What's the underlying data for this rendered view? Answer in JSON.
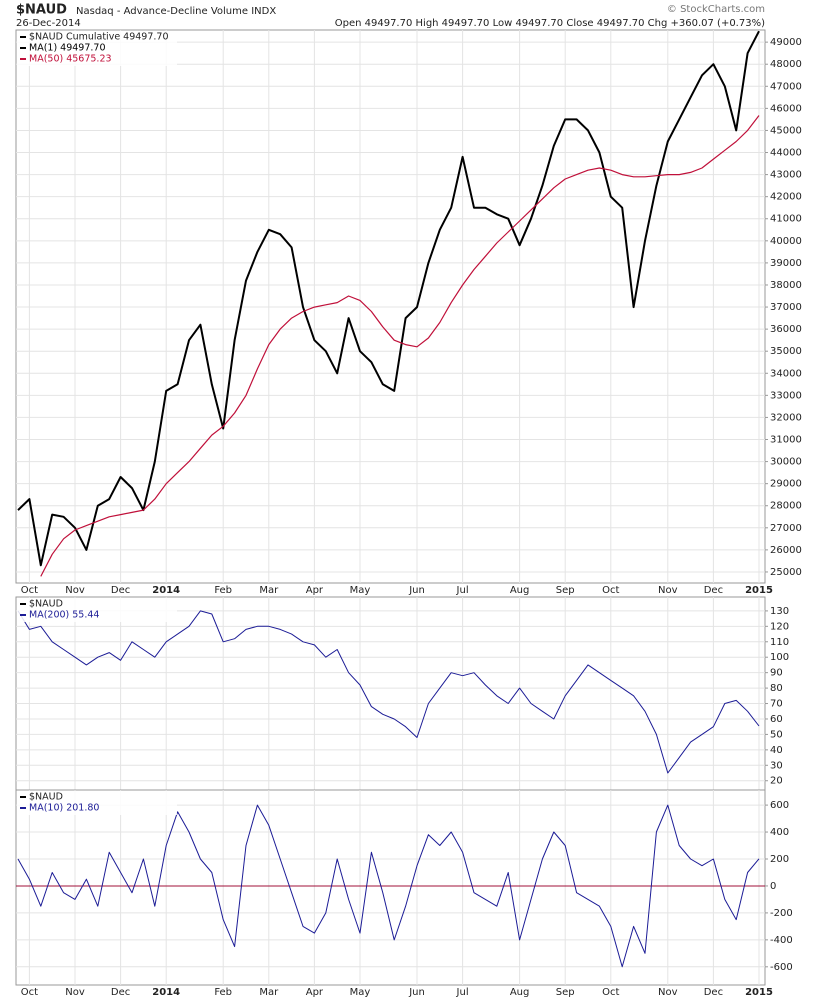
{
  "header": {
    "symbol": "$NAUD",
    "name": "Nasdaq - Advance-Decline Volume INDX",
    "date": "26-Dec-2014",
    "quote": "Open 49497.70  High 49497.70  Low 49497.70  Close 49497.70  Chg +360.07 (+0.73%)",
    "credit": "© StockCharts.com"
  },
  "chart_data": [
    {
      "type": "line",
      "legend_title": "$NAUD Cumulative 49497.70",
      "categories": [
        null,
        "Oct",
        null,
        null,
        null,
        "Nov",
        null,
        null,
        null,
        "Dec",
        null,
        null,
        null,
        "2014",
        null,
        null,
        null,
        null,
        "Feb",
        null,
        null,
        null,
        "Mar",
        null,
        null,
        null,
        "Apr",
        null,
        null,
        null,
        "May",
        null,
        null,
        null,
        null,
        "Jun",
        null,
        null,
        null,
        "Jul",
        null,
        null,
        null,
        null,
        "Aug",
        null,
        null,
        null,
        "Sep",
        null,
        null,
        null,
        "Oct",
        null,
        null,
        null,
        null,
        "Nov",
        null,
        null,
        null,
        "Dec",
        null,
        null,
        null,
        "2015"
      ],
      "series": [
        {
          "name": "MA(1) 49497.70",
          "color": "#000000",
          "width": 2,
          "values": [
            27800,
            28300,
            25300,
            27600,
            27500,
            27000,
            26000,
            28000,
            28300,
            29300,
            28800,
            27800,
            30000,
            33200,
            33500,
            35500,
            36200,
            33500,
            31500,
            35500,
            38200,
            39500,
            40500,
            40300,
            39700,
            37000,
            35500,
            35000,
            34000,
            36500,
            35000,
            34500,
            33500,
            33200,
            36500,
            37000,
            39000,
            40500,
            41500,
            43800,
            41500,
            41500,
            41200,
            41000,
            39800,
            41000,
            42500,
            44300,
            45500,
            45500,
            45000,
            44000,
            42000,
            41500,
            37000,
            40000,
            42500,
            44500,
            45500,
            46500,
            47500,
            48000,
            47000,
            45000,
            48500,
            49497.7
          ]
        },
        {
          "name": "MA(50) 45675.23",
          "color": "#c0103a",
          "width": 1.2,
          "values": [
            null,
            null,
            24800,
            25800,
            26500,
            26900,
            27100,
            27300,
            27500,
            27600,
            27700,
            27800,
            28300,
            29000,
            29500,
            30000,
            30600,
            31200,
            31600,
            32200,
            33000,
            34200,
            35300,
            36000,
            36500,
            36800,
            37000,
            37100,
            37200,
            37500,
            37300,
            36800,
            36100,
            35500,
            35300,
            35200,
            35600,
            36300,
            37200,
            38000,
            38700,
            39300,
            39900,
            40400,
            40900,
            41400,
            41900,
            42400,
            42800,
            43000,
            43200,
            43300,
            43200,
            43000,
            42900,
            42900,
            42950,
            43000,
            43000,
            43100,
            43300,
            43700,
            44100,
            44500,
            45000,
            45675.23
          ]
        }
      ],
      "ylim": [
        24500,
        49550
      ],
      "yticks": [
        25000,
        26000,
        27000,
        28000,
        29000,
        30000,
        31000,
        32000,
        33000,
        34000,
        35000,
        36000,
        37000,
        38000,
        39000,
        40000,
        41000,
        42000,
        43000,
        44000,
        45000,
        46000,
        47000,
        48000,
        49000
      ],
      "grid": true
    },
    {
      "type": "line",
      "legend_title": "$NAUD",
      "series": [
        {
          "name": "MA(200) 55.44",
          "color": "#1c1c96",
          "width": 1,
          "values": [
            130,
            118,
            120,
            110,
            105,
            100,
            95,
            100,
            103,
            98,
            110,
            105,
            100,
            110,
            115,
            120,
            130,
            128,
            110,
            112,
            118,
            120,
            120,
            118,
            115,
            110,
            108,
            100,
            105,
            90,
            82,
            68,
            63,
            60,
            55,
            48,
            70,
            80,
            90,
            88,
            90,
            82,
            75,
            70,
            80,
            70,
            65,
            60,
            75,
            85,
            95,
            90,
            85,
            80,
            75,
            65,
            50,
            25,
            35,
            45,
            50,
            55,
            70,
            72,
            65,
            55.44
          ]
        }
      ],
      "ylim": [
        14,
        139
      ],
      "yticks": [
        20,
        30,
        40,
        50,
        60,
        70,
        80,
        90,
        100,
        110,
        120,
        130
      ],
      "grid": true
    },
    {
      "type": "line",
      "legend_title": "$NAUD",
      "categories": [
        null,
        "Oct",
        null,
        null,
        null,
        "Nov",
        null,
        null,
        null,
        "Dec",
        null,
        null,
        null,
        "2014",
        null,
        null,
        null,
        null,
        "Feb",
        null,
        null,
        null,
        "Mar",
        null,
        null,
        null,
        "Apr",
        null,
        null,
        null,
        "May",
        null,
        null,
        null,
        null,
        "Jun",
        null,
        null,
        null,
        "Jul",
        null,
        null,
        null,
        null,
        "Aug",
        null,
        null,
        null,
        "Sep",
        null,
        null,
        null,
        "Oct",
        null,
        null,
        null,
        null,
        "Nov",
        null,
        null,
        null,
        "Dec",
        null,
        null,
        null,
        "2015"
      ],
      "series": [
        {
          "name": "MA(10) 201.80",
          "color": "#1c1c96",
          "width": 1,
          "values": [
            200,
            50,
            -150,
            100,
            -50,
            -100,
            50,
            -150,
            250,
            100,
            -50,
            200,
            -150,
            300,
            550,
            400,
            200,
            100,
            -250,
            -450,
            300,
            600,
            450,
            200,
            -50,
            -300,
            -350,
            -200,
            200,
            -100,
            -350,
            250,
            -50,
            -400,
            -150,
            150,
            380,
            300,
            400,
            250,
            -50,
            -100,
            -150,
            100,
            -400,
            -100,
            200,
            400,
            300,
            -50,
            -100,
            -150,
            -300,
            -600,
            -300,
            -500,
            400,
            600,
            300,
            200,
            150,
            200,
            -100,
            -250,
            100,
            201.8
          ]
        }
      ],
      "ylim": [
        -735,
        712
      ],
      "yticks": [
        -600,
        -400,
        -200,
        0,
        200,
        400,
        600
      ],
      "reference_line": {
        "value": 0,
        "color": "#a0103a"
      },
      "grid": true
    }
  ]
}
